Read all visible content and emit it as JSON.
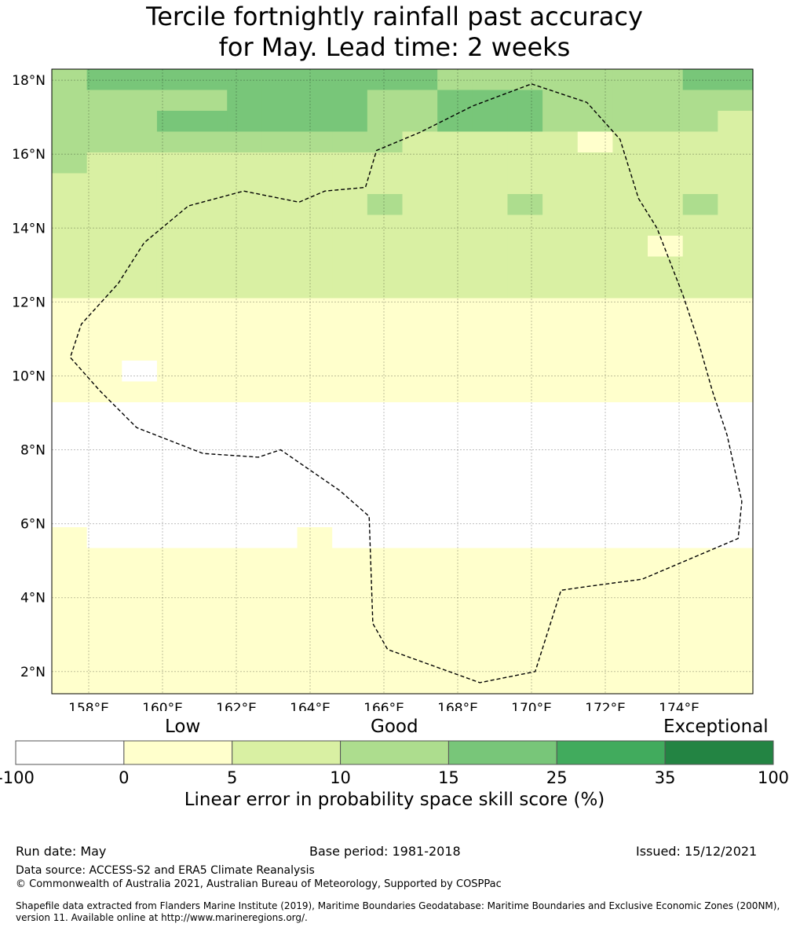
{
  "title": {
    "line1": "Tercile fortnightly rainfall past accuracy",
    "line2": "for May. Lead time: 2 weeks"
  },
  "map": {
    "lon_range": [
      157.0,
      176.0
    ],
    "lat_range": [
      1.4,
      18.3
    ],
    "cell_size_deg": 0.55,
    "lon_ticks": [
      {
        "value": 158,
        "label": "158°E"
      },
      {
        "value": 160,
        "label": "160°E"
      },
      {
        "value": 162,
        "label": "162°E"
      },
      {
        "value": 164,
        "label": "164°E"
      },
      {
        "value": 166,
        "label": "166°E"
      },
      {
        "value": 168,
        "label": "168°E"
      },
      {
        "value": 170,
        "label": "170°E"
      },
      {
        "value": 172,
        "label": "172°E"
      },
      {
        "value": 174,
        "label": "174°E"
      }
    ],
    "lat_ticks": [
      {
        "value": 18,
        "label": "18°N"
      },
      {
        "value": 16,
        "label": "16°N"
      },
      {
        "value": 14,
        "label": "14°N"
      },
      {
        "value": 12,
        "label": "12°N"
      },
      {
        "value": 10,
        "label": "10°N"
      },
      {
        "value": 8,
        "label": "8°N"
      },
      {
        "value": 6,
        "label": "6°N"
      },
      {
        "value": 4,
        "label": "4°N"
      },
      {
        "value": 2,
        "label": "2°N"
      }
    ],
    "grid_rows_skill_class": [
      "32222222222333333322",
      "33333222233222333333",
      "33322222233222333334",
      "33333333334444454444",
      "34444444444444444444",
      "44444444444444444444",
      "44444444434443444434",
      "44444444444444444444",
      "44444444444444444544",
      "44444444444444444444",
      "44444444444444444444",
      "55555555555555555555",
      "55555555555555555555",
      "55555555555555555555",
      "55655555555555555555",
      "55555555555555555555",
      "66666666666666666666",
      "66666666666666666666",
      "66666666666666666666",
      "66666666666666666666",
      "66666666666666666666",
      "66666666666666666666",
      "56666665666666666666",
      "55555555555555555555",
      "55555555555555555555",
      "55555555555555555555",
      "55555555555555555555",
      "55555555555555555555",
      "55555555555555555555",
      "55555555555555555555"
    ],
    "eez_boundary": [
      [
        170.0,
        17.9
      ],
      [
        171.5,
        17.4
      ],
      [
        172.4,
        16.4
      ],
      [
        172.9,
        14.8
      ],
      [
        173.4,
        14.0
      ],
      [
        174.1,
        12.2
      ],
      [
        174.5,
        11.0
      ],
      [
        174.9,
        9.6
      ],
      [
        175.3,
        8.4
      ],
      [
        175.7,
        6.6
      ],
      [
        175.6,
        5.6
      ],
      [
        173.0,
        4.5
      ],
      [
        171.5,
        4.3
      ],
      [
        170.8,
        4.2
      ],
      [
        170.1,
        2.0
      ],
      [
        168.6,
        1.7
      ],
      [
        166.1,
        2.6
      ],
      [
        165.7,
        3.3
      ],
      [
        165.6,
        6.2
      ],
      [
        164.8,
        6.9
      ],
      [
        163.2,
        8.0
      ],
      [
        162.6,
        7.8
      ],
      [
        161.1,
        7.9
      ],
      [
        159.3,
        8.6
      ],
      [
        158.3,
        9.6
      ],
      [
        157.5,
        10.5
      ],
      [
        157.8,
        11.4
      ],
      [
        158.8,
        12.5
      ],
      [
        159.5,
        13.6
      ],
      [
        160.7,
        14.6
      ],
      [
        162.2,
        15.0
      ],
      [
        163.7,
        14.7
      ],
      [
        164.4,
        15.0
      ],
      [
        165.5,
        15.1
      ],
      [
        165.8,
        16.1
      ],
      [
        167.0,
        16.6
      ],
      [
        168.4,
        17.3
      ]
    ]
  },
  "colorbar": {
    "headings": [
      "Low",
      "Good",
      "Exceptional"
    ],
    "ticks": [
      "-100",
      "0",
      "5",
      "10",
      "15",
      "25",
      "35",
      "100"
    ],
    "colors": [
      "#ffffff",
      "#ffffcc",
      "#d9f0a3",
      "#addd8e",
      "#78c679",
      "#41ab5d",
      "#238443"
    ],
    "label": "Linear error in probability space skill score (%)"
  },
  "footer": {
    "run_date": "Run date: May",
    "base_period": "Base period: 1981-2018",
    "issued": "Issued: 15/12/2021",
    "data_source": "Data source: ACCESS-S2 and ERA5 Climate Reanalysis",
    "copyright": "© Commonwealth of Australia 2021, Australian Bureau of Meteorology, Supported by COSPPac",
    "shapefile_line1": "Shapefile data extracted from Flanders Marine Institute (2019), Maritime Boundaries Geodatabase: Maritime Boundaries and Exclusive Economic Zones (200NM),",
    "shapefile_line2": "version 11. Available online at http://www.marineregions.org/."
  }
}
